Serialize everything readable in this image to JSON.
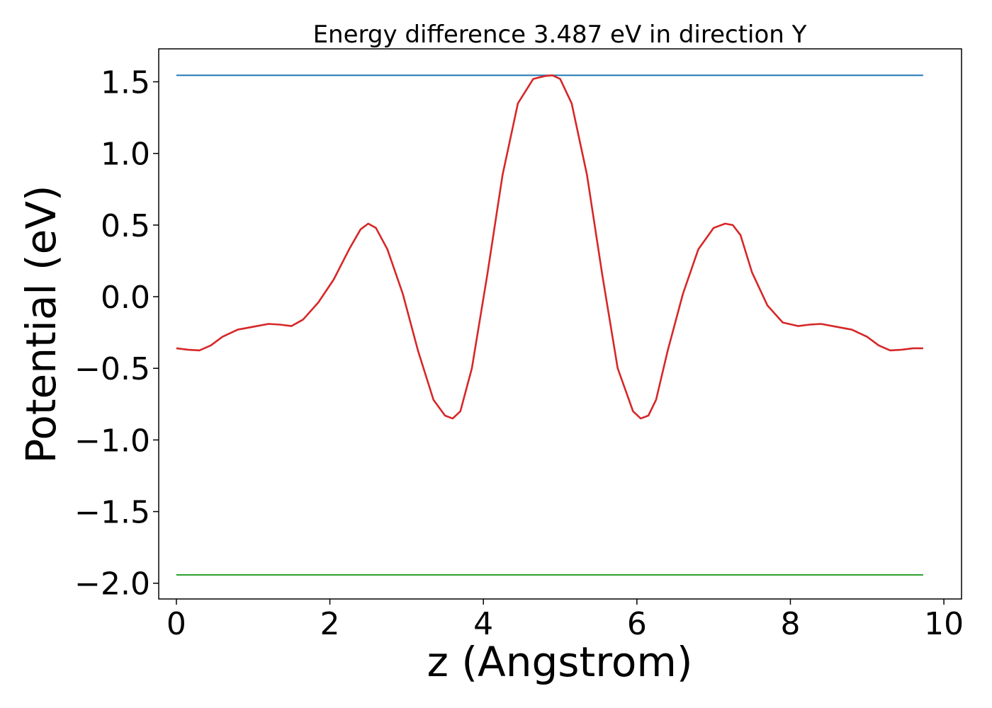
{
  "chart_data": {
    "type": "line",
    "title": "Energy difference 3.487 eV in direction Y",
    "xlabel": "z (Angstrom)",
    "ylabel": "Potential (eV)",
    "xlim": [
      -0.23,
      10.23
    ],
    "ylim": [
      -2.11,
      1.73
    ],
    "xticks": [
      0,
      2,
      4,
      6,
      8,
      10
    ],
    "xtick_labels": [
      "0",
      "2",
      "4",
      "6",
      "8",
      "10"
    ],
    "yticks": [
      1.5,
      1.0,
      0.5,
      0.0,
      -0.5,
      -1.0,
      -1.5,
      -2.0
    ],
    "ytick_labels": [
      "1.5",
      "1.0",
      "0.5",
      "0.0",
      "−0.5",
      "−1.0",
      "−1.5",
      "−2.0"
    ],
    "grid": false,
    "series": [
      {
        "color": "#1f77b4",
        "x": [
          0,
          9.73
        ],
        "y": [
          1.545,
          1.545
        ]
      },
      {
        "color": "#2ca02c",
        "x": [
          0,
          9.73
        ],
        "y": [
          -1.942,
          -1.942
        ]
      },
      {
        "color": "#d62728",
        "x": [
          0,
          0.15,
          0.3,
          0.45,
          0.6,
          0.8,
          1.0,
          1.2,
          1.35,
          1.5,
          1.65,
          1.85,
          2.05,
          2.25,
          2.4,
          2.5,
          2.6,
          2.75,
          2.95,
          3.15,
          3.35,
          3.5,
          3.6,
          3.7,
          3.85,
          4.05,
          4.25,
          4.45,
          4.65,
          4.8,
          4.9,
          5.0,
          5.15,
          5.35,
          5.55,
          5.75,
          5.95,
          6.05,
          6.15,
          6.25,
          6.4,
          6.6,
          6.8,
          7.0,
          7.15,
          7.25,
          7.35,
          7.5,
          7.7,
          7.9,
          8.1,
          8.25,
          8.4,
          8.6,
          8.8,
          9.0,
          9.15,
          9.3,
          9.45,
          9.6,
          9.73
        ],
        "y": [
          -0.36,
          -0.37,
          -0.375,
          -0.34,
          -0.28,
          -0.23,
          -0.21,
          -0.19,
          -0.195,
          -0.205,
          -0.16,
          -0.04,
          0.12,
          0.33,
          0.47,
          0.51,
          0.48,
          0.33,
          0.02,
          -0.38,
          -0.72,
          -0.83,
          -0.85,
          -0.8,
          -0.5,
          0.15,
          0.85,
          1.35,
          1.52,
          1.54,
          1.545,
          1.52,
          1.35,
          0.85,
          0.15,
          -0.5,
          -0.8,
          -0.85,
          -0.83,
          -0.72,
          -0.38,
          0.02,
          0.33,
          0.48,
          0.51,
          0.5,
          0.43,
          0.17,
          -0.06,
          -0.18,
          -0.205,
          -0.195,
          -0.19,
          -0.21,
          -0.23,
          -0.28,
          -0.34,
          -0.375,
          -0.37,
          -0.36,
          -0.36
        ]
      }
    ]
  }
}
